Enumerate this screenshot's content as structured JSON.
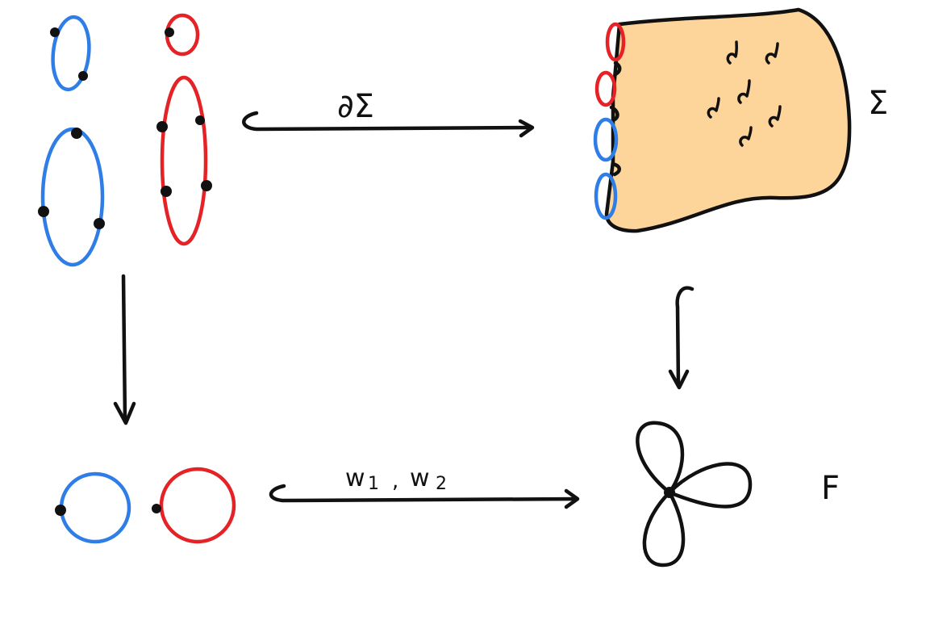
{
  "labels": {
    "boundary_map": "∂Σ",
    "surface": "Σ",
    "target": "F",
    "words_w": "w",
    "word1_index": "1",
    "word_sep": ",",
    "word2_index": "2"
  },
  "colors": {
    "blue": "#2f7de6",
    "red": "#e52226",
    "surface_fill": "#fdd49a",
    "ink": "#111111"
  }
}
